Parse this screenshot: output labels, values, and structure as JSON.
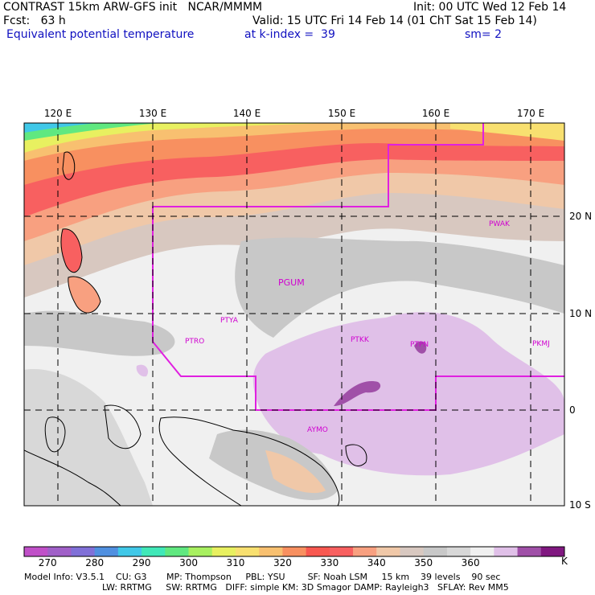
{
  "header": {
    "line1_left": "CONTRAST 15km ARW-GFS init   NCAR/MMMM",
    "line1_right": "Init: 00 UTC Wed 12 Feb 14",
    "line2_left": "Fcst:   63 h",
    "line2_right": "Valid: 15 UTC Fri 14 Feb 14 (01 ChT Sat 15 Feb 14)",
    "line3_left": "Equivalent potential temperature",
    "line3_mid": "at k-index =  39",
    "line3_right": "sm= 2"
  },
  "map": {
    "lon_labels": [
      "120 E",
      "130 E",
      "140 E",
      "150 E",
      "160 E",
      "170 E"
    ],
    "lat_labels": [
      "20 N",
      "10 N",
      "0",
      "10 S"
    ],
    "stations": [
      "PWAK",
      "PGUM",
      "PTYA",
      "PTRO",
      "PTKK",
      "PTPN",
      "PKMJ",
      "AYMO"
    ],
    "colors": {
      "border": "#e020e0",
      "station_text": "#d000d0",
      "grid": "#000000"
    }
  },
  "colorbar": {
    "labels": [
      "270",
      "280",
      "290",
      "300",
      "310",
      "320",
      "330",
      "340",
      "350",
      "360"
    ],
    "unit": "K",
    "colors": [
      "#c050c8",
      "#a060c8",
      "#8070d8",
      "#5090e0",
      "#40c8e8",
      "#40e8b8",
      "#60e880",
      "#a8f060",
      "#e8f060",
      "#f8e070",
      "#f8c070",
      "#f89060",
      "#f85850",
      "#f86060",
      "#f8a080",
      "#f0c8a8",
      "#d8c8c0",
      "#c8c8c8",
      "#d8d8d8",
      "#f0f0f0",
      "#e0c0e8",
      "#a050a8",
      "#801880"
    ]
  },
  "model_info": {
    "line1": "Model Info: V3.5.1    CU: G3       MP: Thompson     PBL: YSU        SF: Noah LSM     15 km    39 levels    90 sec",
    "line2": "LW: RRTMG     SW: RRTMG   DIFF: simple KM: 3D Smagor DAMP: Rayleigh3   SFLAY: Rev MM5"
  }
}
